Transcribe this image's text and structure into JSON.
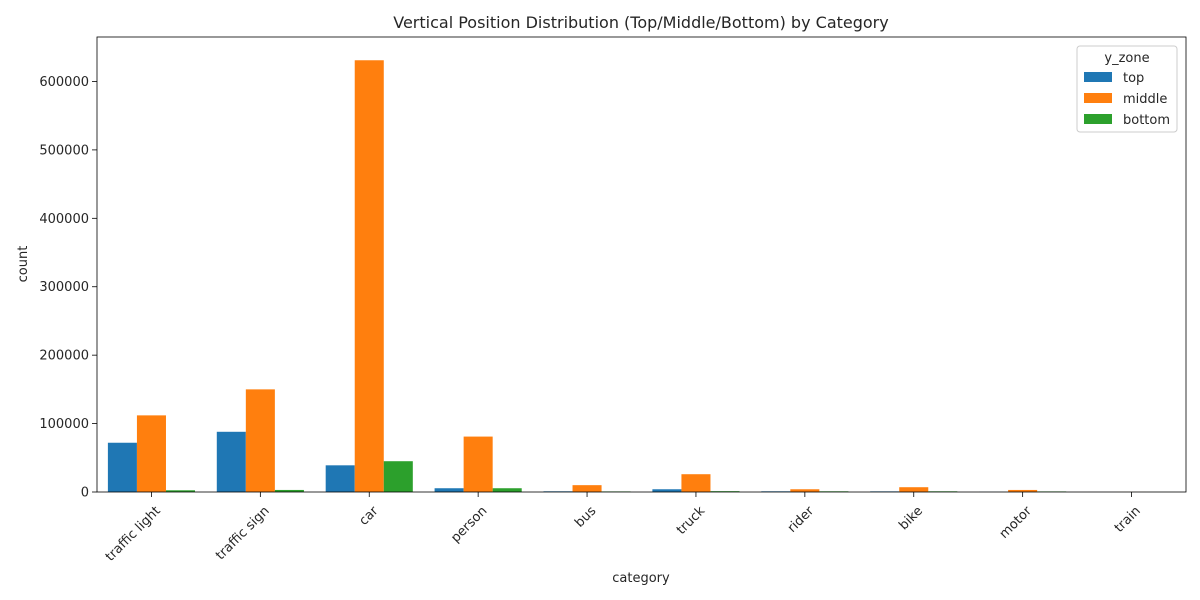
{
  "chart_data": {
    "type": "bar",
    "title": "Vertical Position Distribution (Top/Middle/Bottom) by Category",
    "xlabel": "category",
    "ylabel": "count",
    "ylim": [
      0,
      665000
    ],
    "yticks": [
      0,
      100000,
      200000,
      300000,
      400000,
      500000,
      600000
    ],
    "grid": false,
    "legend_placement": "top-right",
    "legend_title": "y_zone",
    "categories": [
      "traffic light",
      "traffic sign",
      "car",
      "person",
      "bus",
      "truck",
      "rider",
      "bike",
      "motor",
      "train"
    ],
    "series": [
      {
        "name": "top",
        "color": "#1f77b4",
        "values": [
          72000,
          88000,
          39000,
          5500,
          1000,
          4000,
          1000,
          900,
          200,
          40
        ]
      },
      {
        "name": "middle",
        "color": "#ff7f0e",
        "values": [
          112000,
          150000,
          631000,
          81000,
          10000,
          26000,
          4000,
          7000,
          3000,
          100
        ]
      },
      {
        "name": "bottom",
        "color": "#2ca02c",
        "values": [
          2500,
          3000,
          45000,
          5500,
          800,
          1200,
          1000,
          1000,
          800,
          20
        ]
      }
    ]
  }
}
